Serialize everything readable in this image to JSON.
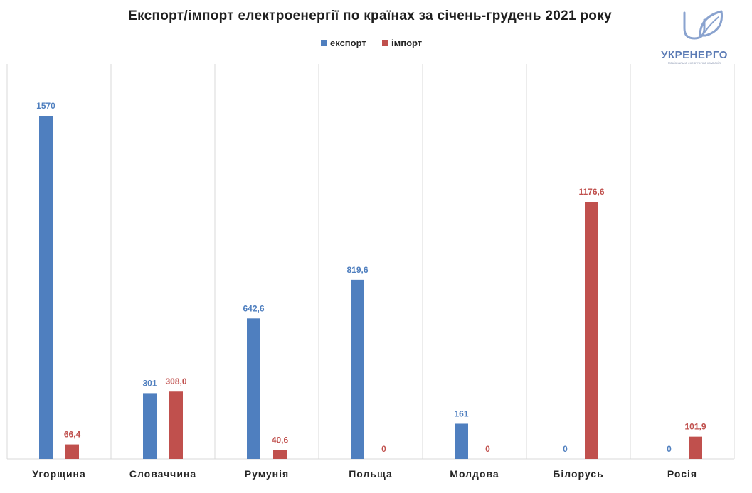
{
  "brand": {
    "name": "УКРЕНЕРГО",
    "tagline": "Національна енергетична компанія",
    "color": "#5b7bb5"
  },
  "chart_data": {
    "type": "bar",
    "title": "Експорт/імпорт електроенергії по країнах за січень-грудень 2021 року",
    "xlabel": "",
    "ylabel": "",
    "ylim": [
      0,
      1700
    ],
    "grid": "vertical category separators",
    "legend_position": "top-center",
    "categories": [
      "Угорщина",
      "Словаччина",
      "Румунія",
      "Польща",
      "Молдова",
      "Білорусь",
      "Росія"
    ],
    "series": [
      {
        "name": "експорт",
        "color": "#4f7fbf",
        "values": [
          1570,
          301,
          642.6,
          819.6,
          161,
          0,
          0
        ],
        "labels": [
          "1570",
          "301",
          "642,6",
          "819,6",
          "161",
          "0",
          "0"
        ]
      },
      {
        "name": "імпорт",
        "color": "#c0504d",
        "values": [
          66.4,
          308.0,
          40.6,
          0,
          0,
          1176.6,
          101.9
        ],
        "labels": [
          "66,4",
          "308,0",
          "40,6",
          "0",
          "0",
          "1176,6",
          "101,9"
        ]
      }
    ]
  }
}
